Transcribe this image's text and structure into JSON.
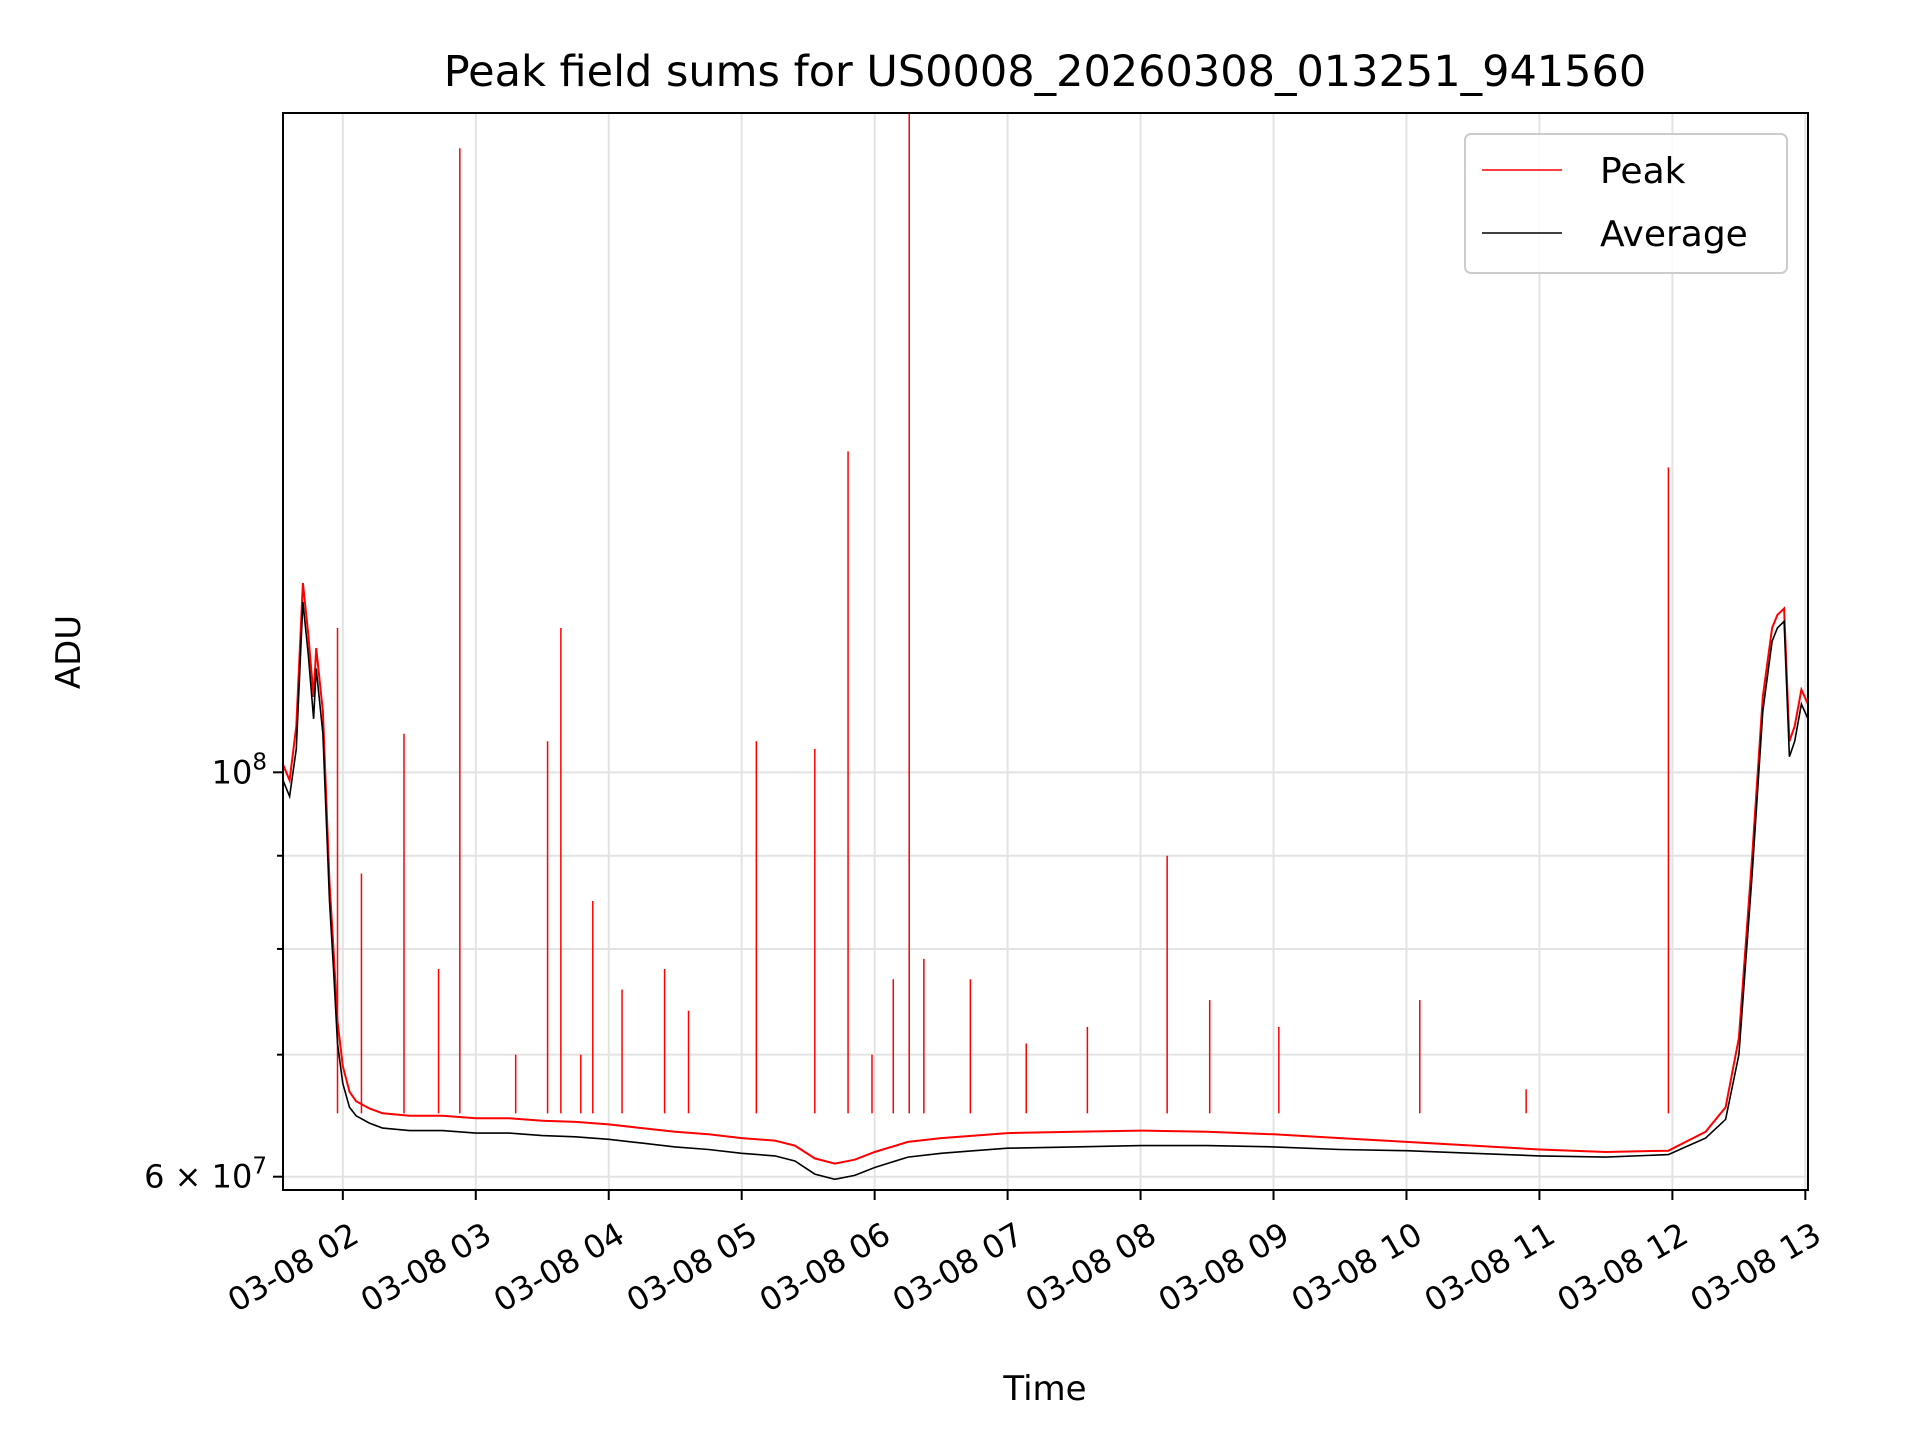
{
  "chart_data": {
    "type": "line",
    "title": "Peak field sums for US0008_20260308_013251_941560",
    "xlabel": "Time",
    "ylabel": "ADU",
    "yscale": "log",
    "x_unit": "hours since 03-08 00:00",
    "xlim": [
      1.55,
      13.02
    ],
    "ylim": [
      59000000,
      230000000
    ],
    "grid": true,
    "legend_position": "top-right",
    "x_ticks": [
      {
        "value": 2,
        "label": "03-08 02"
      },
      {
        "value": 3,
        "label": "03-08 03"
      },
      {
        "value": 4,
        "label": "03-08 04"
      },
      {
        "value": 5,
        "label": "03-08 05"
      },
      {
        "value": 6,
        "label": "03-08 06"
      },
      {
        "value": 7,
        "label": "03-08 07"
      },
      {
        "value": 8,
        "label": "03-08 08"
      },
      {
        "value": 9,
        "label": "03-08 09"
      },
      {
        "value": 10,
        "label": "03-08 10"
      },
      {
        "value": 11,
        "label": "03-08 11"
      },
      {
        "value": 12,
        "label": "03-08 12"
      },
      {
        "value": 13,
        "label": "03-08 13"
      }
    ],
    "y_major_ticks": [
      {
        "value": 60000000,
        "base": "6 × 10",
        "exp": "7"
      },
      {
        "value": 100000000,
        "base": "10",
        "exp": "8"
      }
    ],
    "y_minor_ticks": [
      70000000,
      80000000,
      90000000
    ],
    "series": [
      {
        "name": "Average",
        "color": "#000000",
        "x": [
          1.55,
          1.6,
          1.65,
          1.7,
          1.74,
          1.78,
          1.8,
          1.85,
          1.9,
          1.93,
          1.96,
          2.0,
          2.05,
          2.1,
          2.2,
          2.3,
          2.5,
          2.75,
          3.0,
          3.25,
          3.5,
          3.75,
          4.0,
          4.25,
          4.5,
          4.75,
          5.0,
          5.25,
          5.4,
          5.55,
          5.7,
          5.85,
          6.0,
          6.25,
          6.5,
          6.75,
          7.0,
          7.5,
          8.0,
          8.5,
          9.0,
          9.5,
          10.0,
          10.5,
          11.0,
          11.5,
          11.97,
          12.1,
          12.25,
          12.4,
          12.5,
          12.6,
          12.68,
          12.75,
          12.79,
          12.84,
          12.88,
          12.92,
          12.97,
          13.02
        ],
        "y": [
          99000000,
          97000000,
          103000000,
          124000000,
          116000000,
          107000000,
          114000000,
          105000000,
          85000000,
          78000000,
          71000000,
          67500000,
          65500000,
          64800000,
          64200000,
          63800000,
          63600000,
          63600000,
          63400000,
          63400000,
          63200000,
          63100000,
          62900000,
          62600000,
          62300000,
          62100000,
          61800000,
          61600000,
          61200000,
          60200000,
          59800000,
          60100000,
          60700000,
          61500000,
          61800000,
          62000000,
          62200000,
          62300000,
          62400000,
          62400000,
          62300000,
          62100000,
          62000000,
          61800000,
          61600000,
          61500000,
          61700000,
          62300000,
          63000000,
          64500000,
          70000000,
          88000000,
          108000000,
          118000000,
          120000000,
          121000000,
          102000000,
          104000000,
          109000000,
          107000000
        ]
      },
      {
        "name": "Peak",
        "color": "#ff0000",
        "x": [
          1.55,
          1.6,
          1.65,
          1.7,
          1.74,
          1.78,
          1.8,
          1.85,
          1.9,
          1.93,
          1.96,
          2.0,
          2.05,
          2.1,
          2.2,
          2.3,
          2.5,
          2.75,
          3.0,
          3.25,
          3.5,
          3.75,
          4.0,
          4.25,
          4.5,
          4.75,
          5.0,
          5.25,
          5.4,
          5.55,
          5.7,
          5.85,
          6.0,
          6.25,
          6.5,
          6.75,
          7.0,
          7.5,
          8.0,
          8.5,
          9.0,
          9.5,
          10.0,
          10.5,
          11.0,
          11.5,
          11.97,
          12.1,
          12.25,
          12.4,
          12.5,
          12.6,
          12.68,
          12.75,
          12.79,
          12.84,
          12.88,
          12.92,
          12.97,
          13.02
        ],
        "y": [
          101000000,
          99000000,
          106000000,
          127000000,
          119000000,
          110000000,
          117000000,
          108000000,
          87000000,
          80000000,
          73000000,
          69000000,
          66800000,
          66000000,
          65400000,
          65000000,
          64800000,
          64800000,
          64600000,
          64600000,
          64400000,
          64300000,
          64100000,
          63800000,
          63500000,
          63300000,
          63000000,
          62800000,
          62400000,
          61400000,
          61000000,
          61300000,
          61900000,
          62700000,
          63000000,
          63200000,
          63400000,
          63500000,
          63600000,
          63500000,
          63300000,
          63000000,
          62700000,
          62400000,
          62100000,
          61900000,
          62000000,
          62700000,
          63500000,
          65500000,
          71500000,
          90000000,
          110000000,
          120000000,
          122000000,
          123000000,
          104000000,
          106000000,
          111000000,
          109000000
        ]
      }
    ],
    "peak_spikes": [
      {
        "x": 1.96,
        "y": 120000000
      },
      {
        "x": 2.14,
        "y": 88000000
      },
      {
        "x": 2.46,
        "y": 105000000
      },
      {
        "x": 2.72,
        "y": 78000000
      },
      {
        "x": 2.88,
        "y": 220000000
      },
      {
        "x": 3.3,
        "y": 70000000
      },
      {
        "x": 3.54,
        "y": 104000000
      },
      {
        "x": 3.64,
        "y": 120000000
      },
      {
        "x": 3.79,
        "y": 70000000
      },
      {
        "x": 3.88,
        "y": 85000000
      },
      {
        "x": 4.1,
        "y": 76000000
      },
      {
        "x": 4.42,
        "y": 78000000
      },
      {
        "x": 4.6,
        "y": 74000000
      },
      {
        "x": 5.11,
        "y": 104000000
      },
      {
        "x": 5.55,
        "y": 103000000
      },
      {
        "x": 5.8,
        "y": 150000000
      },
      {
        "x": 5.98,
        "y": 70000000
      },
      {
        "x": 6.14,
        "y": 77000000
      },
      {
        "x": 6.26,
        "y": 232000000
      },
      {
        "x": 6.37,
        "y": 79000000
      },
      {
        "x": 6.72,
        "y": 77000000
      },
      {
        "x": 7.14,
        "y": 71000000
      },
      {
        "x": 7.6,
        "y": 72500000
      },
      {
        "x": 8.2,
        "y": 90000000
      },
      {
        "x": 8.52,
        "y": 75000000
      },
      {
        "x": 9.04,
        "y": 72500000
      },
      {
        "x": 10.1,
        "y": 75000000
      },
      {
        "x": 10.9,
        "y": 67000000
      },
      {
        "x": 11.97,
        "y": 147000000
      }
    ]
  }
}
